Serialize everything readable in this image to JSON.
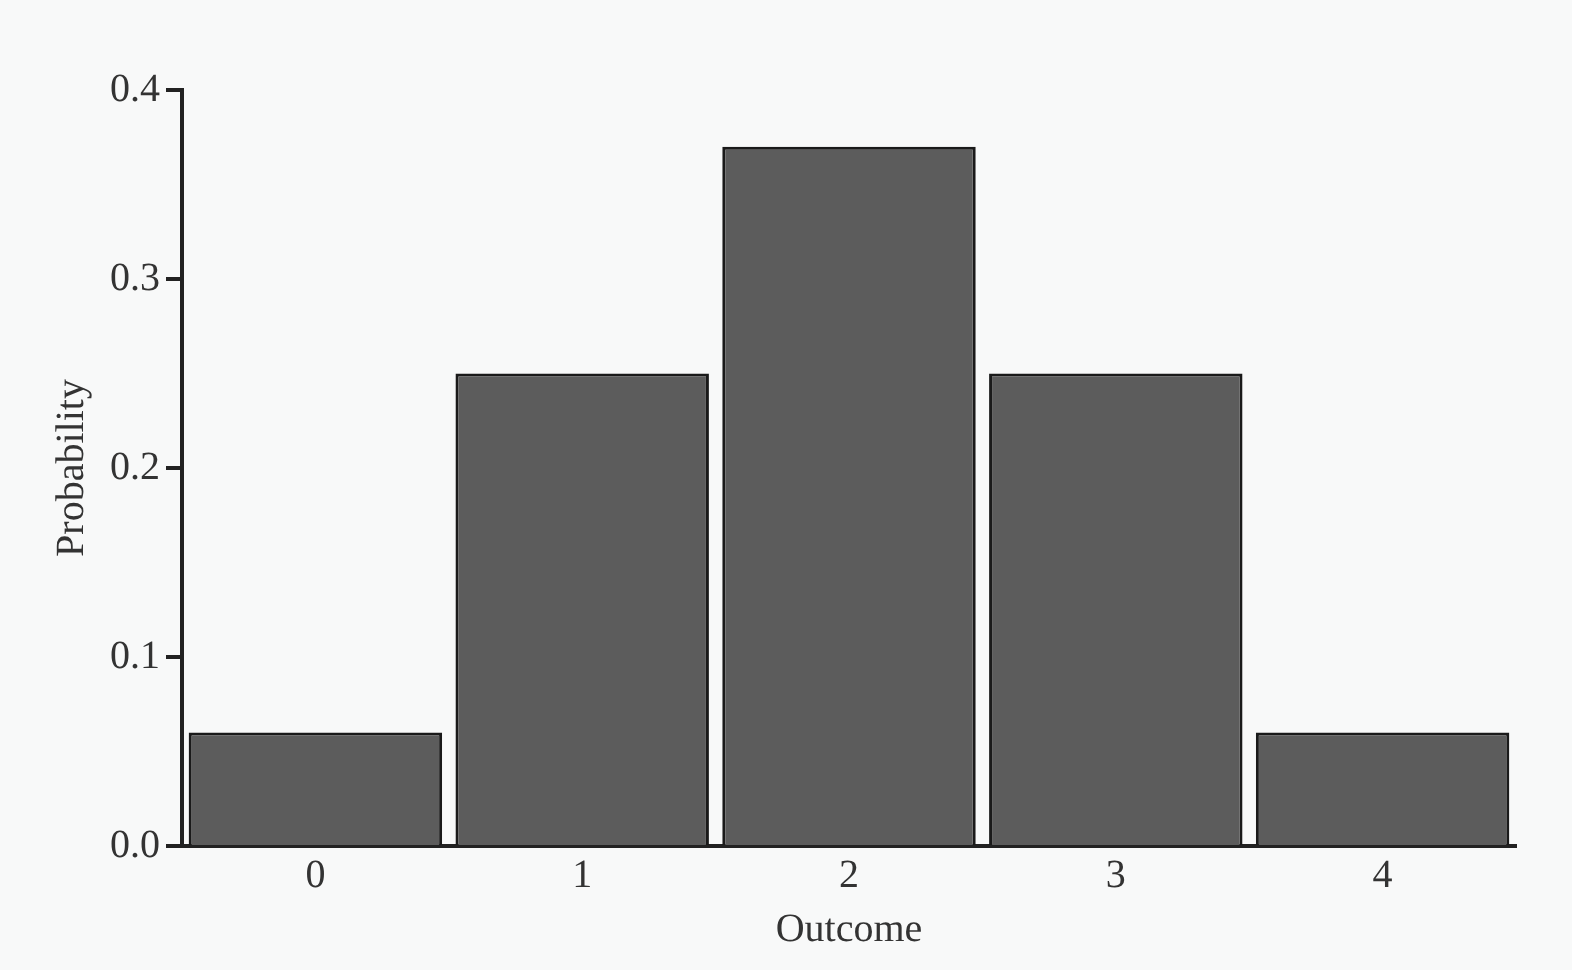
{
  "chart_data": {
    "type": "bar",
    "xlabel": "Outcome",
    "ylabel": "Probability",
    "categories": [
      "0",
      "1",
      "2",
      "3",
      "4"
    ],
    "values": [
      0.06,
      0.25,
      0.37,
      0.25,
      0.06
    ],
    "color": "#5c5c5c",
    "ylim": [
      0,
      0.4
    ],
    "yticks": [
      {
        "value": 0,
        "label": "0.0"
      },
      {
        "value": 0.1,
        "label": "0.1"
      },
      {
        "value": 0.2,
        "label": "0.2"
      },
      {
        "value": 0.3,
        "label": "0.3"
      },
      {
        "value": 0.4,
        "label": "0.4"
      }
    ],
    "grid": false,
    "legend": false
  }
}
